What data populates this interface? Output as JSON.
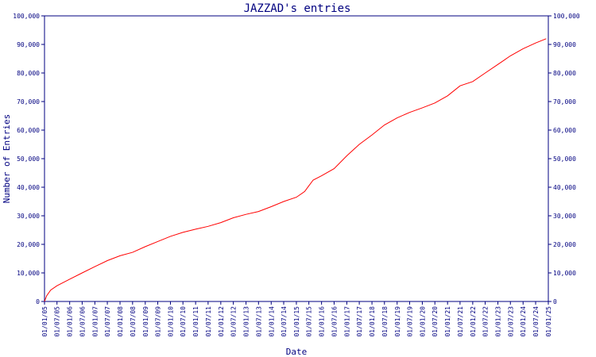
{
  "chart_data": {
    "type": "line",
    "title": "JAZZAD's entries",
    "xlabel": "Date",
    "ylabel": "Number of Entries",
    "ylim": [
      0,
      100000
    ],
    "xlim": [
      "2005-01-01",
      "2025-01-01"
    ],
    "grid": false,
    "y_ticks": [
      {
        "value": 0,
        "label": "0"
      },
      {
        "value": 10000,
        "label": "10,000"
      },
      {
        "value": 20000,
        "label": "20,000"
      },
      {
        "value": 30000,
        "label": "30,000"
      },
      {
        "value": 40000,
        "label": "40,000"
      },
      {
        "value": 50000,
        "label": "50,000"
      },
      {
        "value": 60000,
        "label": "60,000"
      },
      {
        "value": 70000,
        "label": "70,000"
      },
      {
        "value": 80000,
        "label": "80,000"
      },
      {
        "value": 90000,
        "label": "90,000"
      },
      {
        "value": 100000,
        "label": "100,000"
      }
    ],
    "x_ticks": [
      {
        "value": "2005-01-01",
        "label": "01/01/05"
      },
      {
        "value": "2005-07-01",
        "label": "01/07/05"
      },
      {
        "value": "2006-01-01",
        "label": "01/01/06"
      },
      {
        "value": "2006-07-01",
        "label": "01/07/06"
      },
      {
        "value": "2007-01-01",
        "label": "01/01/07"
      },
      {
        "value": "2007-07-01",
        "label": "01/07/07"
      },
      {
        "value": "2008-01-01",
        "label": "01/01/08"
      },
      {
        "value": "2008-07-01",
        "label": "01/07/08"
      },
      {
        "value": "2009-01-01",
        "label": "01/01/09"
      },
      {
        "value": "2009-07-01",
        "label": "01/07/09"
      },
      {
        "value": "2010-01-01",
        "label": "01/01/10"
      },
      {
        "value": "2010-07-01",
        "label": "01/07/10"
      },
      {
        "value": "2011-01-01",
        "label": "01/01/11"
      },
      {
        "value": "2011-07-01",
        "label": "01/07/11"
      },
      {
        "value": "2012-01-01",
        "label": "01/01/12"
      },
      {
        "value": "2012-07-01",
        "label": "01/07/12"
      },
      {
        "value": "2013-01-01",
        "label": "01/01/13"
      },
      {
        "value": "2013-07-01",
        "label": "01/07/13"
      },
      {
        "value": "2014-01-01",
        "label": "01/01/14"
      },
      {
        "value": "2014-07-01",
        "label": "01/07/14"
      },
      {
        "value": "2015-01-01",
        "label": "01/01/15"
      },
      {
        "value": "2015-07-01",
        "label": "01/07/15"
      },
      {
        "value": "2016-01-01",
        "label": "01/01/16"
      },
      {
        "value": "2016-07-01",
        "label": "01/07/16"
      },
      {
        "value": "2017-01-01",
        "label": "01/01/17"
      },
      {
        "value": "2017-07-01",
        "label": "01/07/17"
      },
      {
        "value": "2018-01-01",
        "label": "01/01/18"
      },
      {
        "value": "2018-07-01",
        "label": "01/07/18"
      },
      {
        "value": "2019-01-01",
        "label": "01/01/19"
      },
      {
        "value": "2019-07-01",
        "label": "01/07/19"
      },
      {
        "value": "2020-01-01",
        "label": "01/01/20"
      },
      {
        "value": "2020-07-01",
        "label": "01/07/20"
      },
      {
        "value": "2021-01-01",
        "label": "01/01/21"
      },
      {
        "value": "2021-07-01",
        "label": "01/07/21"
      },
      {
        "value": "2022-01-01",
        "label": "01/01/22"
      },
      {
        "value": "2022-07-01",
        "label": "01/07/22"
      },
      {
        "value": "2023-01-01",
        "label": "01/01/23"
      },
      {
        "value": "2023-07-01",
        "label": "01/07/23"
      },
      {
        "value": "2024-01-01",
        "label": "01/01/24"
      },
      {
        "value": "2024-07-01",
        "label": "01/07/24"
      },
      {
        "value": "2025-01-01",
        "label": "01/01/25"
      }
    ],
    "series": [
      {
        "color": "#ff0000",
        "points": [
          {
            "x": "2005-01-01",
            "y": 0
          },
          {
            "x": "2005-02-01",
            "y": 2000
          },
          {
            "x": "2005-04-01",
            "y": 4000
          },
          {
            "x": "2005-07-01",
            "y": 5500
          },
          {
            "x": "2006-01-01",
            "y": 7800
          },
          {
            "x": "2006-07-01",
            "y": 10000
          },
          {
            "x": "2007-01-01",
            "y": 12200
          },
          {
            "x": "2007-07-01",
            "y": 14300
          },
          {
            "x": "2008-01-01",
            "y": 16000
          },
          {
            "x": "2008-07-01",
            "y": 17200
          },
          {
            "x": "2009-01-01",
            "y": 19200
          },
          {
            "x": "2009-07-01",
            "y": 21000
          },
          {
            "x": "2010-01-01",
            "y": 22800
          },
          {
            "x": "2010-07-01",
            "y": 24200
          },
          {
            "x": "2011-01-01",
            "y": 25300
          },
          {
            "x": "2011-07-01",
            "y": 26300
          },
          {
            "x": "2012-01-01",
            "y": 27600
          },
          {
            "x": "2012-07-01",
            "y": 29300
          },
          {
            "x": "2013-01-01",
            "y": 30500
          },
          {
            "x": "2013-07-01",
            "y": 31500
          },
          {
            "x": "2014-01-01",
            "y": 33200
          },
          {
            "x": "2014-07-01",
            "y": 35000
          },
          {
            "x": "2015-01-01",
            "y": 36500
          },
          {
            "x": "2015-05-01",
            "y": 38500
          },
          {
            "x": "2015-07-01",
            "y": 40500
          },
          {
            "x": "2015-09-01",
            "y": 42500
          },
          {
            "x": "2016-01-01",
            "y": 44000
          },
          {
            "x": "2016-07-01",
            "y": 46500
          },
          {
            "x": "2017-01-01",
            "y": 51000
          },
          {
            "x": "2017-07-01",
            "y": 55000
          },
          {
            "x": "2018-01-01",
            "y": 58300
          },
          {
            "x": "2018-07-01",
            "y": 61800
          },
          {
            "x": "2019-01-01",
            "y": 64300
          },
          {
            "x": "2019-07-01",
            "y": 66200
          },
          {
            "x": "2020-01-01",
            "y": 67800
          },
          {
            "x": "2020-07-01",
            "y": 69500
          },
          {
            "x": "2021-01-01",
            "y": 72000
          },
          {
            "x": "2021-07-01",
            "y": 75500
          },
          {
            "x": "2022-01-01",
            "y": 77000
          },
          {
            "x": "2022-07-01",
            "y": 80000
          },
          {
            "x": "2023-01-01",
            "y": 83000
          },
          {
            "x": "2023-07-01",
            "y": 86000
          },
          {
            "x": "2024-01-01",
            "y": 88500
          },
          {
            "x": "2024-07-01",
            "y": 90500
          },
          {
            "x": "2024-12-01",
            "y": 92000
          }
        ]
      }
    ]
  }
}
